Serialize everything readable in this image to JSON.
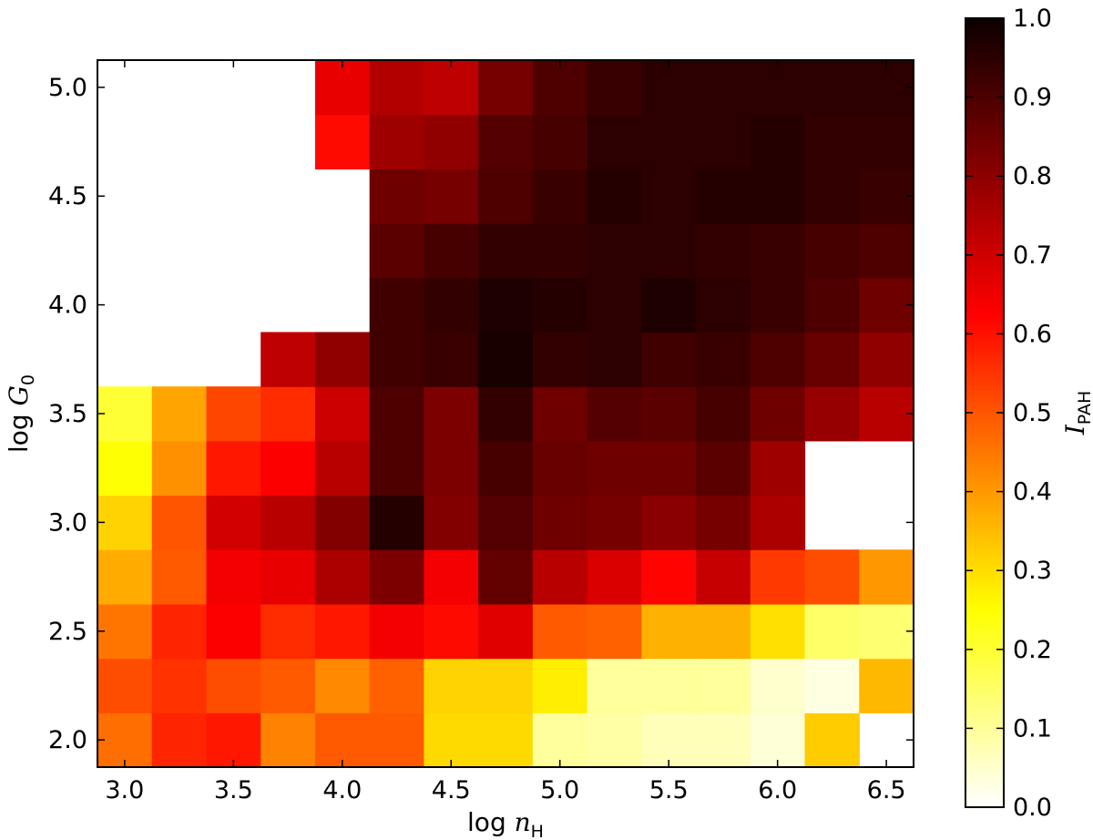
{
  "chart_data": {
    "type": "heatmap",
    "xlabel": "log n_H",
    "ylabel": "log G_0",
    "colorbar_label": "I_PAH",
    "x_centers": [
      3.0,
      3.25,
      3.5,
      3.75,
      4.0,
      4.25,
      4.5,
      4.75,
      5.0,
      5.25,
      5.5,
      5.75,
      6.0,
      6.25,
      6.5
    ],
    "y_centers": [
      2.0,
      2.25,
      2.5,
      2.75,
      3.0,
      3.25,
      3.5,
      3.75,
      4.0,
      4.25,
      4.5,
      4.75,
      5.0
    ],
    "xlim": [
      2.875,
      6.625
    ],
    "ylim": [
      1.875,
      5.125
    ],
    "xticks": [
      3.0,
      3.5,
      4.0,
      4.5,
      5.0,
      5.5,
      6.0,
      6.5
    ],
    "xtick_labels": [
      "3.0",
      "3.5",
      "4.0",
      "4.5",
      "5.0",
      "5.5",
      "6.0",
      "6.5"
    ],
    "yticks": [
      2.0,
      2.5,
      3.0,
      3.5,
      4.0,
      4.5,
      5.0
    ],
    "ytick_labels": [
      "2.0",
      "2.5",
      "3.0",
      "3.5",
      "4.0",
      "4.5",
      "5.0"
    ],
    "colorbar_range": [
      0.0,
      1.0
    ],
    "colorbar_ticks": [
      0.0,
      0.1,
      0.2,
      0.3,
      0.4,
      0.5,
      0.6,
      0.7,
      0.8,
      0.9,
      1.0
    ],
    "colorbar_tick_labels": [
      "0.0",
      "0.1",
      "0.2",
      "0.3",
      "0.4",
      "0.5",
      "0.6",
      "0.7",
      "0.8",
      "0.9",
      "1.0"
    ],
    "colormap": "hot_r",
    "values": [
      [
        0.47,
        0.58,
        0.6,
        0.44,
        0.5,
        0.5,
        0.31,
        0.31,
        0.1,
        0.09,
        0.07,
        0.07,
        0.04,
        0.33,
        null
      ],
      [
        0.52,
        0.56,
        0.52,
        0.5,
        0.43,
        0.49,
        0.32,
        0.32,
        0.28,
        0.1,
        0.1,
        0.1,
        0.05,
        0.03,
        0.36
      ],
      [
        0.46,
        0.58,
        0.64,
        0.57,
        0.6,
        0.65,
        0.62,
        0.68,
        0.5,
        0.49,
        0.37,
        0.37,
        0.3,
        0.15,
        0.14
      ],
      [
        0.38,
        0.5,
        0.65,
        0.67,
        0.76,
        0.83,
        0.65,
        0.87,
        0.74,
        0.69,
        0.63,
        0.72,
        0.55,
        0.52,
        0.41
      ],
      [
        0.32,
        0.51,
        0.7,
        0.74,
        0.82,
        0.96,
        0.82,
        0.89,
        0.85,
        0.84,
        0.81,
        0.84,
        0.76,
        null,
        null
      ],
      [
        0.25,
        0.42,
        0.6,
        0.64,
        0.74,
        0.9,
        0.83,
        0.91,
        0.86,
        0.85,
        0.85,
        0.88,
        0.78,
        null,
        null
      ],
      [
        0.2,
        0.39,
        0.53,
        0.57,
        0.71,
        0.9,
        0.83,
        0.94,
        0.85,
        0.89,
        0.88,
        0.91,
        0.85,
        0.79,
        0.74
      ],
      [
        null,
        null,
        null,
        0.73,
        0.8,
        0.92,
        0.93,
        0.98,
        0.94,
        0.95,
        0.92,
        0.93,
        0.9,
        0.86,
        0.8
      ],
      [
        null,
        null,
        null,
        null,
        null,
        0.92,
        0.94,
        0.97,
        0.96,
        0.95,
        0.97,
        0.95,
        0.93,
        0.9,
        0.85
      ],
      [
        null,
        null,
        null,
        null,
        null,
        0.88,
        0.91,
        0.94,
        0.94,
        0.95,
        0.95,
        0.94,
        0.93,
        0.91,
        0.9
      ],
      [
        null,
        null,
        null,
        null,
        null,
        0.85,
        0.84,
        0.9,
        0.93,
        0.96,
        0.95,
        0.96,
        0.96,
        0.94,
        0.93
      ],
      [
        null,
        null,
        null,
        null,
        0.62,
        0.78,
        0.8,
        0.89,
        0.91,
        0.95,
        0.95,
        0.95,
        0.96,
        0.94,
        0.94
      ],
      [
        null,
        null,
        null,
        null,
        0.67,
        0.75,
        0.73,
        0.84,
        0.9,
        0.93,
        0.95,
        0.95,
        0.95,
        0.95,
        0.95
      ]
    ]
  }
}
